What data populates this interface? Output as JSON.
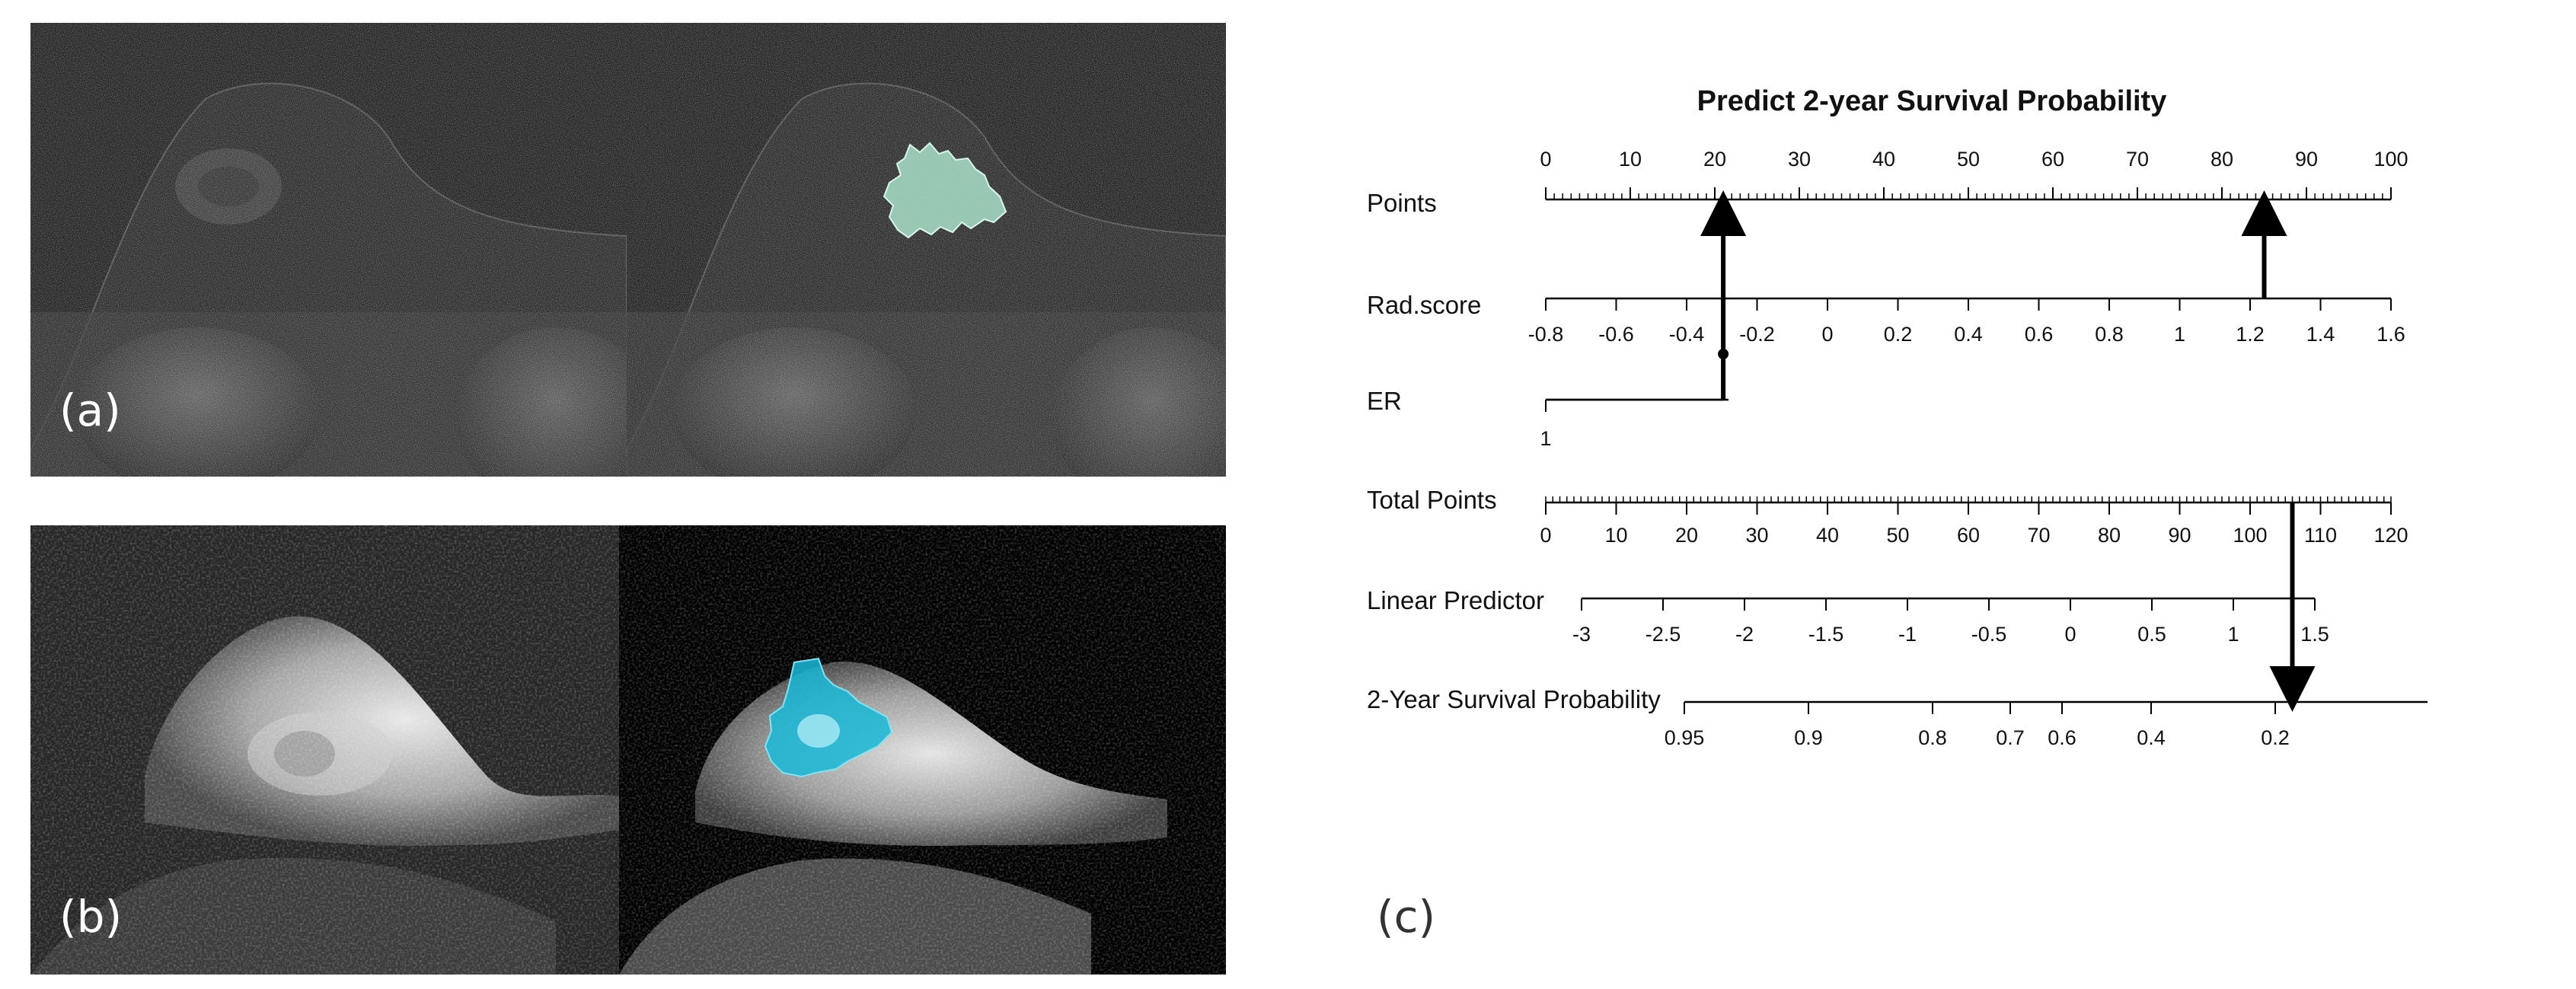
{
  "panels": {
    "a_label": "(a)",
    "b_label": "(b)",
    "c_label": "(c)"
  },
  "colors": {
    "segmentation_a": "#a8e0c8",
    "segmentation_b": "#19b9d8"
  },
  "nomogram": {
    "title": "Predict 2-year Survival Probability",
    "rows": [
      {
        "name": "Points",
        "ticks": [
          "0",
          "10",
          "20",
          "30",
          "40",
          "50",
          "60",
          "70",
          "80",
          "90",
          "100"
        ],
        "tick_values": [
          0,
          10,
          20,
          30,
          40,
          50,
          60,
          70,
          80,
          90,
          100
        ]
      },
      {
        "name": "Rad.score",
        "ticks": [
          "-0.8",
          "-0.6",
          "-0.4",
          "-0.2",
          "0",
          "0.2",
          "0.4",
          "0.6",
          "0.8",
          "1",
          "1.2",
          "1.4",
          "1.6"
        ],
        "tick_values": [
          -0.8,
          -0.6,
          -0.4,
          -0.2,
          0,
          0.2,
          0.4,
          0.6,
          0.8,
          1,
          1.2,
          1.4,
          1.6
        ]
      },
      {
        "name": "ER",
        "ticks": [
          "1"
        ],
        "tick_values": [
          1
        ]
      },
      {
        "name": "Total Points",
        "ticks": [
          "0",
          "10",
          "20",
          "30",
          "40",
          "50",
          "60",
          "70",
          "80",
          "90",
          "100",
          "110",
          "120"
        ],
        "tick_values": [
          0,
          10,
          20,
          30,
          40,
          50,
          60,
          70,
          80,
          90,
          100,
          110,
          120
        ]
      },
      {
        "name": "Linear Predictor",
        "ticks": [
          "-3",
          "-2.5",
          "-2",
          "-1.5",
          "-1",
          "-0.5",
          "0",
          "0.5",
          "1",
          "1.5"
        ],
        "tick_values": [
          -3,
          -2.5,
          -2,
          -1.5,
          -1,
          -0.5,
          0,
          0.5,
          1,
          1.5
        ]
      },
      {
        "name": "2-Year Survival Probability",
        "ticks": [
          "0.95",
          "0.9",
          "0.8",
          "0.7",
          "0.6",
          "0.4",
          "0.2"
        ],
        "tick_values": [
          0.95,
          0.9,
          0.8,
          0.7,
          0.6,
          0.4,
          0.2
        ]
      }
    ],
    "example_reading": {
      "er_points": 21,
      "rad_score": 1.24,
      "rad_score_points": 85,
      "total_points": 106
    }
  }
}
